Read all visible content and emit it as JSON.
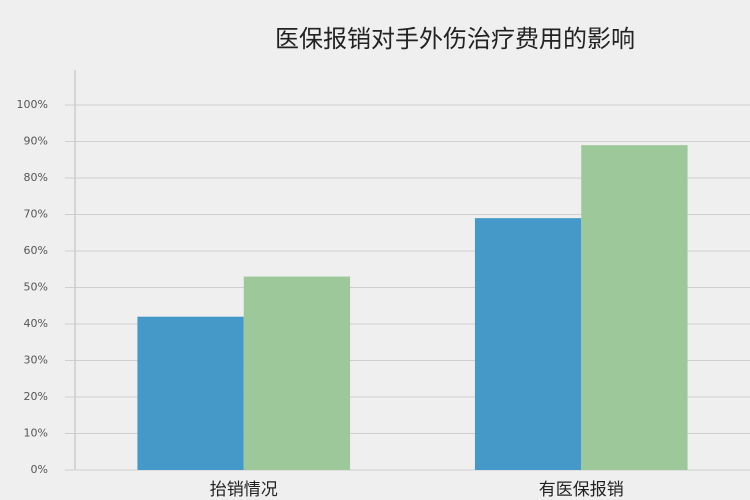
{
  "chart_data": {
    "type": "bar",
    "title": "医保报销对手外伤治疗费用的影响",
    "categories": [
      "抬销情况",
      "有医保报销"
    ],
    "series": [
      {
        "color": "#4499c9",
        "values": [
          42,
          69
        ]
      },
      {
        "color": "#9dc99a",
        "values": [
          53,
          89
        ]
      }
    ],
    "ylim": [
      0,
      110
    ],
    "yticks": [
      {
        "value": 0,
        "label": "0%"
      },
      {
        "value": 10,
        "label": "10%"
      },
      {
        "value": 20,
        "label": "20%"
      },
      {
        "value": 30,
        "label": "30%"
      },
      {
        "value": 40,
        "label": "40%"
      },
      {
        "value": 50,
        "label": "50%"
      },
      {
        "value": 60,
        "label": "60%"
      },
      {
        "value": 70,
        "label": "70%"
      },
      {
        "value": 80,
        "label": "80%"
      },
      {
        "value": 90,
        "label": "90%"
      },
      {
        "value": 100,
        "label": "100%"
      }
    ],
    "grid": true
  }
}
